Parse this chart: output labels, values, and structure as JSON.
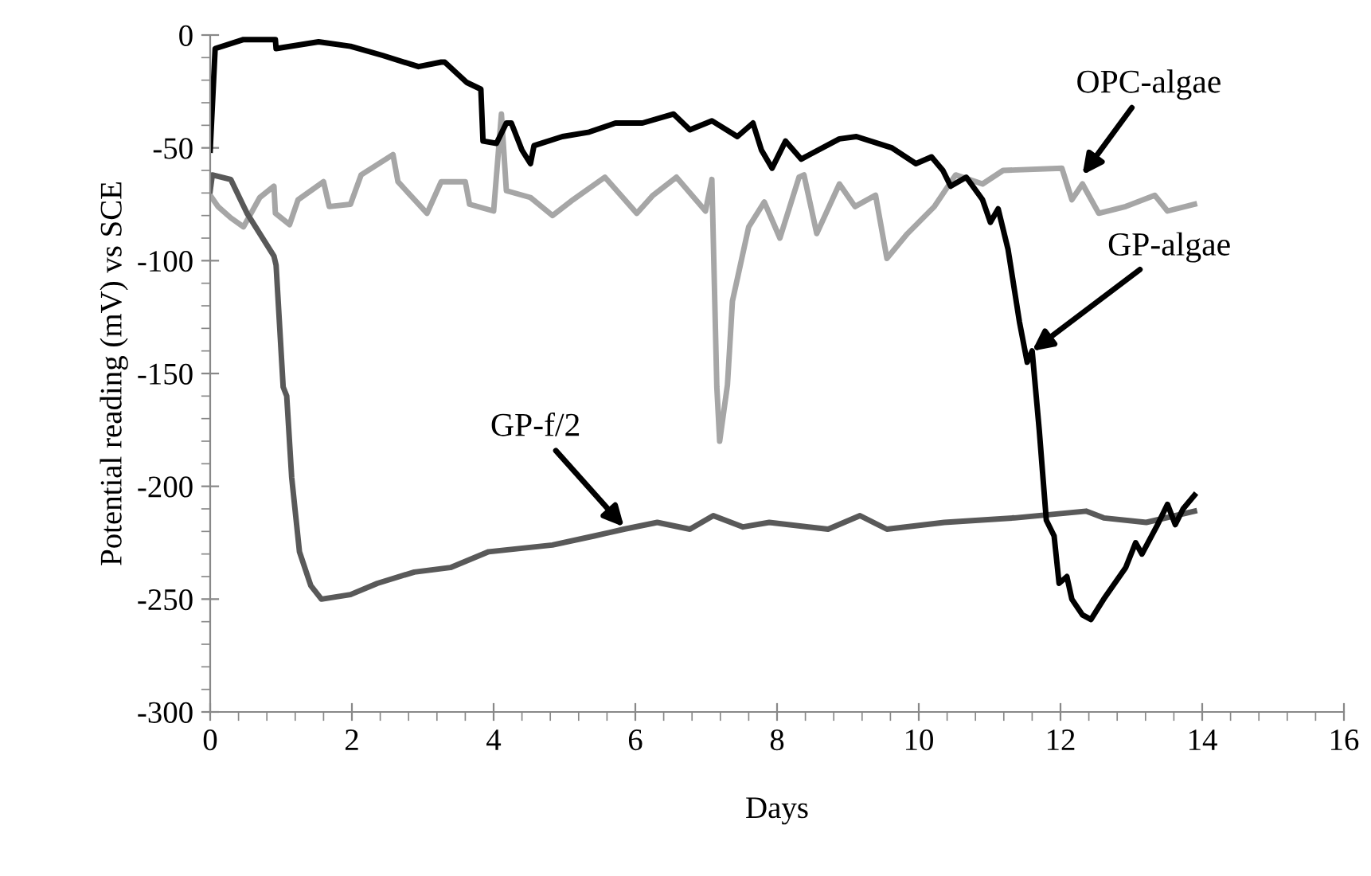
{
  "chart_data": {
    "type": "line",
    "xlabel": "Days",
    "ylabel": "Potential reading (mV) vs SCE",
    "xlim": [
      0,
      16
    ],
    "ylim": [
      -300,
      0
    ],
    "xticks": [
      0,
      2,
      4,
      6,
      8,
      10,
      12,
      14,
      16
    ],
    "yticks": [
      -300,
      -250,
      -200,
      -150,
      -100,
      -50,
      0
    ],
    "grid": false,
    "legend": false,
    "marker": "none",
    "line_style": "solid",
    "series": [
      {
        "color": "#a6a6a6",
        "x": [
          0,
          0.11,
          0.29,
          0.47,
          0.7,
          0.9,
          0.92,
          1.12,
          1.24,
          1.6,
          1.68,
          1.98,
          2.13,
          2.58,
          2.65,
          3.06,
          3.26,
          3.6,
          3.66,
          4.0,
          4.11,
          4.18,
          4.52,
          4.83,
          5.12,
          5.57,
          6.02,
          6.25,
          6.58,
          6.99,
          7.08,
          7.15,
          7.19,
          7.3,
          7.37,
          7.6,
          7.82,
          8.04,
          8.31,
          8.38,
          8.56,
          8.88,
          9.1,
          9.39,
          9.55,
          9.84,
          10.22,
          10.52,
          10.9,
          11.19,
          12.02,
          12.16,
          12.31,
          12.54,
          12.92,
          13.33,
          13.51,
          13.89
        ],
        "values": [
          -71,
          -76,
          -81,
          -85,
          -72,
          -67,
          -79,
          -84,
          -73,
          -65,
          -76,
          -75,
          -62,
          -53,
          -65,
          -79,
          -65,
          -65,
          -75,
          -78,
          -35,
          -69,
          -72,
          -80,
          -73,
          -63,
          -79,
          -71,
          -63,
          -78,
          -64,
          -156,
          -180,
          -155,
          -118,
          -85,
          -74,
          -90,
          -63,
          -62,
          -88,
          -66,
          -76,
          -71,
          -99,
          -88,
          -76,
          -62,
          -66,
          -60,
          -59,
          -73,
          -66,
          -79,
          -76,
          -71,
          -78,
          -75
        ]
      },
      {
        "color": "#595959",
        "x": [
          0,
          0.03,
          0.29,
          0.52,
          0.9,
          0.93,
          1.03,
          1.08,
          1.15,
          1.26,
          1.42,
          1.57,
          1.98,
          2.36,
          2.88,
          3.39,
          3.93,
          4.83,
          5.42,
          5.84,
          6.31,
          6.77,
          7.1,
          7.52,
          7.89,
          8.72,
          9.17,
          9.55,
          10.36,
          11.35,
          12.36,
          12.61,
          13.21,
          13.89
        ],
        "values": [
          -69,
          -62,
          -64,
          -79,
          -98,
          -102,
          -156,
          -160,
          -196,
          -229,
          -244,
          -250,
          -248,
          -243,
          -238,
          -236,
          -229,
          -226,
          -222,
          -219,
          -216,
          -219,
          -213,
          -218,
          -216,
          -219,
          -213,
          -219,
          -216,
          -214,
          -211,
          -214,
          -216,
          -211
        ]
      },
      {
        "color": "#000000",
        "x": [
          0,
          0.07,
          0.47,
          0.92,
          0.93,
          1.53,
          1.98,
          2.43,
          2.94,
          3.26,
          3.31,
          3.62,
          3.82,
          3.85,
          4.04,
          4.18,
          4.25,
          4.4,
          4.52,
          4.57,
          4.97,
          5.35,
          5.72,
          6.1,
          6.54,
          6.77,
          7.08,
          7.44,
          7.66,
          7.78,
          7.93,
          8.12,
          8.34,
          8.88,
          9.12,
          9.62,
          9.96,
          10.18,
          10.34,
          10.45,
          10.67,
          10.9,
          11.01,
          11.12,
          11.26,
          11.42,
          11.53,
          11.6,
          11.7,
          11.8,
          11.91,
          11.98,
          12.09,
          12.16,
          12.31,
          12.43,
          12.61,
          12.92,
          13.06,
          13.15,
          13.37,
          13.51,
          13.62,
          13.73,
          13.89
        ],
        "values": [
          -51,
          -6,
          -2,
          -2,
          -6,
          -3,
          -5,
          -9,
          -14,
          -12,
          -12,
          -21,
          -24,
          -47,
          -48,
          -39,
          -39,
          -51,
          -57,
          -49,
          -45,
          -43,
          -39,
          -39,
          -35,
          -42,
          -38,
          -45,
          -39,
          -51,
          -59,
          -47,
          -55,
          -46,
          -45,
          -50,
          -57,
          -54,
          -60,
          -67,
          -63,
          -73,
          -83,
          -77,
          -95,
          -127,
          -145,
          -140,
          -175,
          -215,
          -222,
          -243,
          -240,
          -250,
          -257,
          -259,
          -250,
          -236,
          -225,
          -230,
          -217,
          -208,
          -217,
          -210,
          -204
        ]
      }
    ],
    "annotations": [
      {
        "text": "OPC-algae",
        "x": 12.31,
        "y": -62
      },
      {
        "text": "GP-algae",
        "x": 11.6,
        "y": -140
      },
      {
        "text": "GP-f/2",
        "x": 5.84,
        "y": -218
      }
    ]
  }
}
